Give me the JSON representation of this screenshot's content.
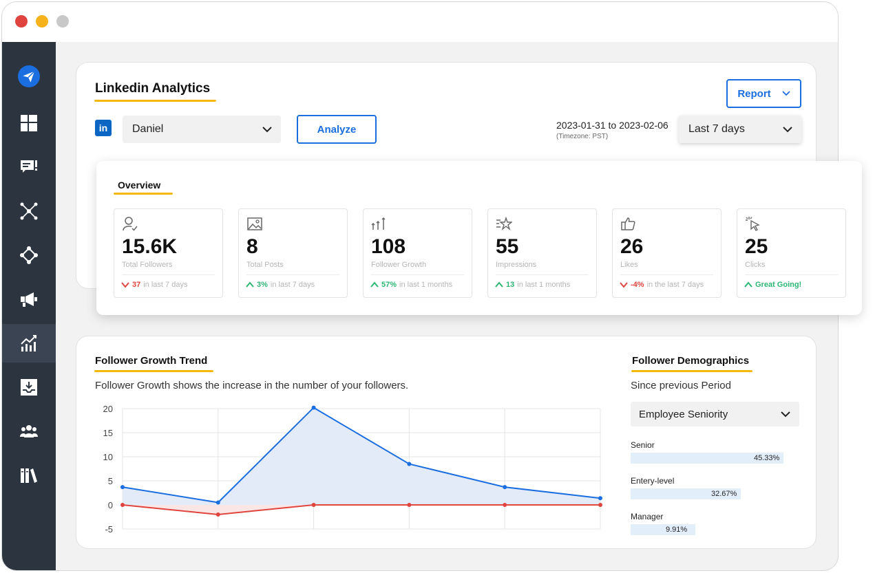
{
  "window": {
    "controls": [
      "close",
      "minimize",
      "zoom"
    ]
  },
  "sidebar": {
    "items": [
      {
        "icon": "paper-plane-icon",
        "active": false
      },
      {
        "icon": "dashboard-icon",
        "active": false
      },
      {
        "icon": "messages-icon",
        "active": false
      },
      {
        "icon": "network-icon",
        "active": false
      },
      {
        "icon": "integrations-icon",
        "active": false
      },
      {
        "icon": "megaphone-icon",
        "active": false
      },
      {
        "icon": "analytics-icon",
        "active": true
      },
      {
        "icon": "inbox-download-icon",
        "active": false
      },
      {
        "icon": "team-icon",
        "active": false
      },
      {
        "icon": "library-icon",
        "active": false
      }
    ]
  },
  "header": {
    "title": "Linkedin Analytics",
    "report_label": "Report",
    "account": "Daniel",
    "analyze_label": "Analyze",
    "date_range": "2023-01-31 to 2023-02-06",
    "timezone": "(Timezone: PST)",
    "period": "Last 7 days"
  },
  "overview": {
    "title": "Overview",
    "cards": [
      {
        "icon": "user-check-icon",
        "value": "15.6K",
        "label": "Total Followers",
        "trend": "down",
        "change": "37",
        "period": "in last 7 days"
      },
      {
        "icon": "image-icon",
        "value": "8",
        "label": "Total Posts",
        "trend": "up",
        "change": "3%",
        "period": "in last 7 days"
      },
      {
        "icon": "growth-arrows-icon",
        "value": "108",
        "label": "Follower Growth",
        "trend": "up",
        "change": "57%",
        "period": "in last 1 months"
      },
      {
        "icon": "star-lines-icon",
        "value": "55",
        "label": "Impressions",
        "trend": "up",
        "change": "13",
        "period": "in last 1 months"
      },
      {
        "icon": "thumbs-up-icon",
        "value": "26",
        "label": "Likes",
        "trend": "down",
        "change": "-4%",
        "period": "in the last 7 days"
      },
      {
        "icon": "cursor-click-icon",
        "value": "25",
        "label": "Clicks",
        "trend": "up",
        "change": "Great Going!",
        "period": ""
      }
    ]
  },
  "growth": {
    "title": "Follower Growth Trend",
    "description": "Follower Growth shows the increase in the number of your followers."
  },
  "chart_data": {
    "type": "area",
    "ylim": [
      -5,
      20
    ],
    "yticks": [
      20,
      15,
      10,
      5,
      0,
      -5
    ],
    "x": [
      1,
      2,
      3,
      4,
      5,
      6
    ],
    "grid": true,
    "series": [
      {
        "color": "#1a6ee0",
        "fill": "#e3ebf9",
        "values": [
          3.7,
          0.5,
          20.2,
          8.5,
          3.7,
          1.4
        ]
      },
      {
        "color": "#e0443e",
        "fill": "#fbe6e6",
        "values": [
          0,
          -2,
          0,
          0,
          0,
          0
        ]
      }
    ]
  },
  "demographics": {
    "title": "Follower Demographics",
    "subtitle": "Since previous Period",
    "filter": "Employee Seniority",
    "items": [
      {
        "name": "Senior",
        "percent": 45.33,
        "label": "45.33%"
      },
      {
        "name": "Entery-level",
        "percent": 32.67,
        "label": "32.67%"
      },
      {
        "name": "Manager",
        "percent": 9.91,
        "label": "9.91%"
      }
    ]
  },
  "colors": {
    "accent": "#1a6ee0",
    "underline": "#f5b70a",
    "sidebar": "#2c3440",
    "up": "#2bb673",
    "down": "#e0443e"
  }
}
